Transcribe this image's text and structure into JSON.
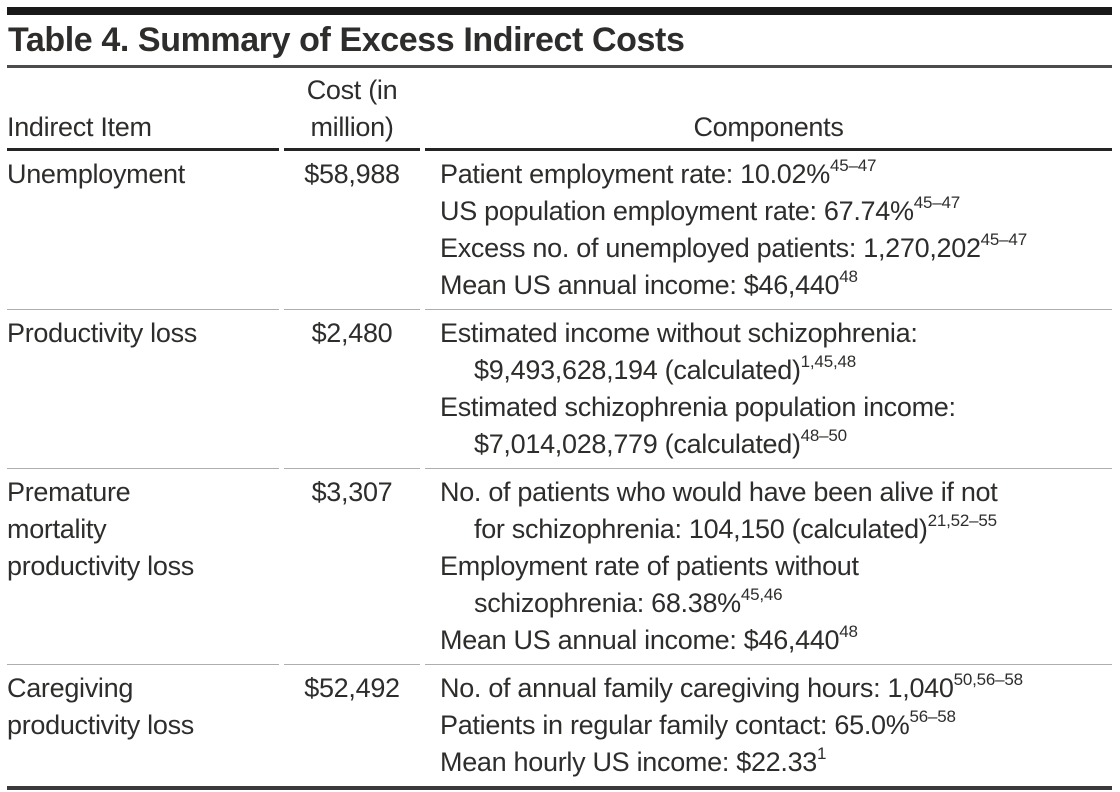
{
  "title": "Table 4. Summary of Excess Indirect Costs",
  "colors": {
    "text": "#2e2d2b",
    "top_bar": "#191919",
    "title_rule": "#4c4c4c",
    "header_rule": "#242424",
    "row_separator": "#aeaeae",
    "bottom_rule": "#3a3a3a"
  },
  "table": {
    "columns": [
      {
        "id": "item",
        "label_lines": [
          "Indirect Item"
        ]
      },
      {
        "id": "cost",
        "label_lines": [
          "Cost (in",
          "million)"
        ]
      },
      {
        "id": "comp",
        "label_lines": [
          "Components"
        ]
      }
    ],
    "rows": [
      {
        "item_lines": [
          "Unemployment"
        ],
        "cost": "$58,988",
        "components": [
          {
            "text": "Patient employment rate: 10.02%",
            "sup": "45–47",
            "indent": false
          },
          {
            "text": "US population employment rate: 67.74%",
            "sup": "45–47",
            "indent": false
          },
          {
            "text": "Excess no. of unemployed patients: 1,270,202",
            "sup": "45–47",
            "indent": false
          },
          {
            "text": "Mean US annual income: $46,440",
            "sup": "48",
            "indent": false
          }
        ]
      },
      {
        "item_lines": [
          "Productivity loss"
        ],
        "cost": "$2,480",
        "components": [
          {
            "text": "Estimated income without schizophrenia:",
            "sup": "",
            "indent": false
          },
          {
            "text": "$9,493,628,194 (calculated)",
            "sup": "1,45,48",
            "indent": true
          },
          {
            "text": "Estimated schizophrenia population income:",
            "sup": "",
            "indent": false
          },
          {
            "text": "$7,014,028,779 (calculated)",
            "sup": "48–50",
            "indent": true
          }
        ]
      },
      {
        "item_lines": [
          "Premature",
          "mortality",
          "productivity loss"
        ],
        "cost": "$3,307",
        "components": [
          {
            "text": "No. of patients who would have been alive if not",
            "sup": "",
            "indent": false
          },
          {
            "text": "for schizophrenia: 104,150 (calculated)",
            "sup": "21,52–55",
            "indent": true
          },
          {
            "text": "Employment rate of patients without",
            "sup": "",
            "indent": false
          },
          {
            "text": "schizophrenia: 68.38%",
            "sup": "45,46",
            "indent": true
          },
          {
            "text": "Mean US annual income: $46,440",
            "sup": "48",
            "indent": false
          }
        ]
      },
      {
        "item_lines": [
          "Caregiving",
          "productivity loss"
        ],
        "cost": "$52,492",
        "components": [
          {
            "text": "No. of annual family caregiving hours: 1,040",
            "sup": "50,56–58",
            "indent": false
          },
          {
            "text": "Patients in regular family contact: 65.0%",
            "sup": "56–58",
            "indent": false
          },
          {
            "text": "Mean hourly US income: $22.33",
            "sup": "1",
            "indent": false
          }
        ]
      }
    ]
  }
}
